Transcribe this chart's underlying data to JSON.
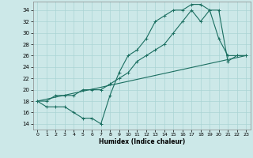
{
  "xlabel": "Humidex (Indice chaleur)",
  "xlim": [
    -0.5,
    23.5
  ],
  "ylim": [
    13,
    35.5
  ],
  "yticks": [
    14,
    16,
    18,
    20,
    22,
    24,
    26,
    28,
    30,
    32,
    34
  ],
  "xticks": [
    0,
    1,
    2,
    3,
    4,
    5,
    6,
    7,
    8,
    9,
    10,
    11,
    12,
    13,
    14,
    15,
    16,
    17,
    18,
    19,
    20,
    21,
    22,
    23
  ],
  "bg_color": "#cce8e8",
  "grid_color": "#aad4d4",
  "line_color": "#1a6e60",
  "line1_x": [
    0,
    1,
    2,
    3,
    4,
    5,
    6,
    7,
    8,
    9,
    10,
    11,
    12,
    13,
    14,
    15,
    16,
    17,
    18,
    19,
    20,
    21,
    22,
    23
  ],
  "line1_y": [
    18,
    17,
    17,
    17,
    16,
    15,
    15,
    14,
    19,
    23,
    26,
    27,
    29,
    32,
    33,
    34,
    34,
    35,
    35,
    34,
    29,
    26,
    26,
    26
  ],
  "line2_x": [
    0,
    1,
    2,
    3,
    4,
    5,
    6,
    7,
    8,
    9,
    10,
    11,
    12,
    13,
    14,
    15,
    16,
    17,
    18,
    19,
    20,
    21,
    22,
    23
  ],
  "line2_y": [
    18,
    18,
    19,
    19,
    19,
    20,
    20,
    20,
    21,
    22,
    23,
    25,
    26,
    27,
    28,
    30,
    32,
    34,
    32,
    34,
    34,
    25,
    26,
    26
  ],
  "line3_x": [
    0,
    23
  ],
  "line3_y": [
    18,
    26
  ]
}
